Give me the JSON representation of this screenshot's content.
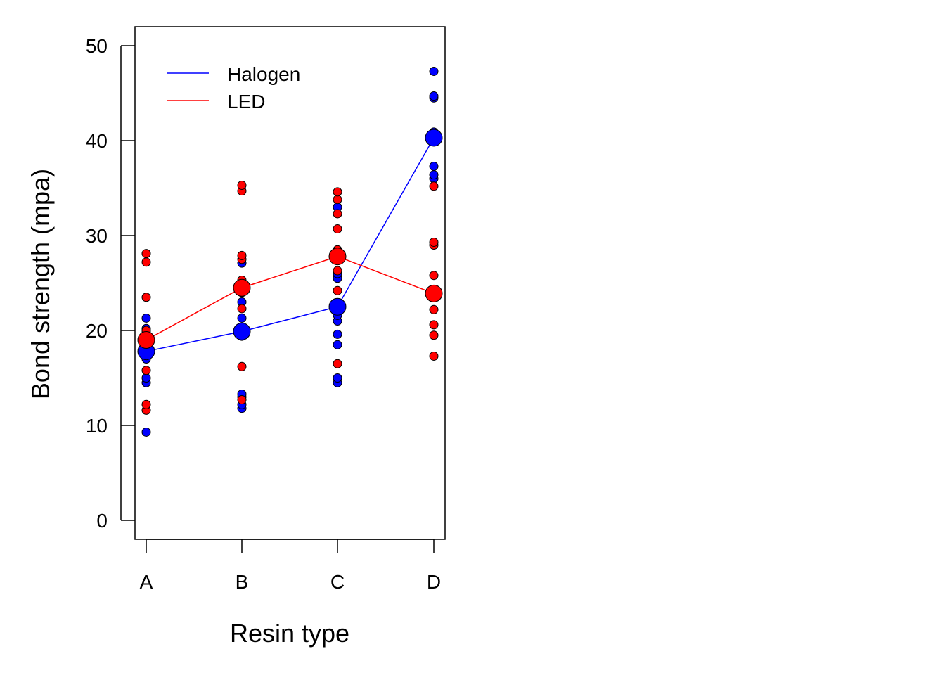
{
  "chart_data": {
    "type": "scatter",
    "title": "",
    "xlabel": "Resin type",
    "ylabel": "Bond strength (mpa)",
    "categories": [
      "A",
      "B",
      "C",
      "D"
    ],
    "ylim": [
      -2,
      52
    ],
    "yticks": [
      0,
      10,
      20,
      30,
      40,
      50
    ],
    "legend": {
      "placement": "top-left",
      "entries": [
        "Halogen",
        "LED"
      ]
    },
    "series": [
      {
        "name": "Halogen",
        "color": "#0000FF",
        "means": [
          17.8,
          19.9,
          22.5,
          40.3
        ],
        "points": [
          [
            9.3,
            14.5,
            15.0,
            17.0,
            18.0,
            19.0,
            19.8,
            20.2,
            21.3
          ],
          [
            11.8,
            12.2,
            13.0,
            13.3,
            19.4,
            20.1,
            21.3,
            23.0,
            27.1
          ],
          [
            14.5,
            15.0,
            18.5,
            19.6,
            21.0,
            21.6,
            25.5,
            26.0,
            28.3,
            33.0
          ],
          [
            36.0,
            36.4,
            37.3,
            40.0,
            40.9,
            44.5,
            44.7,
            47.3
          ]
        ]
      },
      {
        "name": "LED",
        "color": "#FF0000",
        "means": [
          19.0,
          24.5,
          27.8,
          23.9
        ],
        "points": [
          [
            11.6,
            12.2,
            15.8,
            19.5,
            20.0,
            23.5,
            27.2,
            28.1
          ],
          [
            12.7,
            16.2,
            22.3,
            24.0,
            25.3,
            27.5,
            27.9,
            34.7,
            35.3
          ],
          [
            16.5,
            24.2,
            26.3,
            28.5,
            30.7,
            32.3,
            33.8,
            34.6
          ],
          [
            17.3,
            19.5,
            20.6,
            22.2,
            25.8,
            29.0,
            29.3,
            35.2
          ]
        ]
      }
    ]
  }
}
